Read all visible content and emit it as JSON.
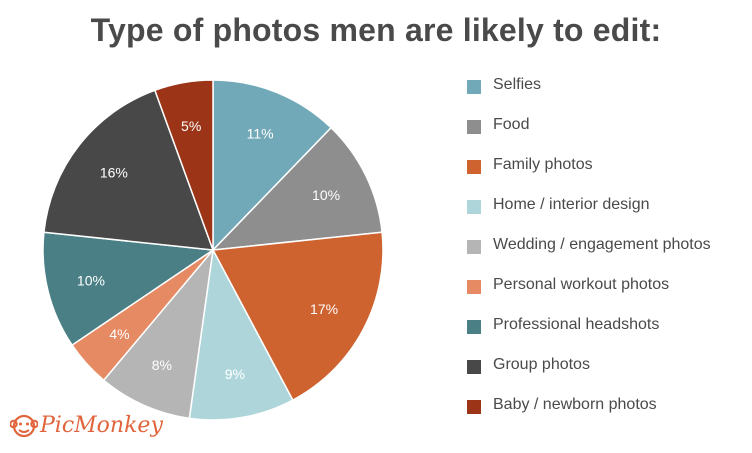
{
  "chart_data": {
    "type": "pie",
    "title": "Type of photos men are likely to edit:",
    "slices": [
      {
        "label": "Selfies",
        "value": 11,
        "value_label": "11%",
        "color": "#72a9b8"
      },
      {
        "label": "Food",
        "value": 10,
        "value_label": "10%",
        "color": "#8e8e8e"
      },
      {
        "label": "Family photos",
        "value": 17,
        "value_label": "17%",
        "color": "#cf6330"
      },
      {
        "label": "Home / interior design",
        "value": 9,
        "value_label": "9%",
        "color": "#aed6da"
      },
      {
        "label": "Wedding / engagement photos",
        "value": 8,
        "value_label": "8%",
        "color": "#b5b5b5"
      },
      {
        "label": "Personal workout photos",
        "value": 4,
        "value_label": "4%",
        "color": "#e58a63"
      },
      {
        "label": "Professional headshots",
        "value": 10,
        "value_label": "10%",
        "color": "#4a8085"
      },
      {
        "label": "Group photos",
        "value": 16,
        "value_label": "16%",
        "color": "#484848"
      },
      {
        "label": "Baby / newborn photos",
        "value": 5,
        "value_label": "5%",
        "color": "#9c3517"
      }
    ],
    "legend_position": "right"
  },
  "logo": {
    "text": "PicMonkey",
    "icon": "monkey-face-icon",
    "color": "#e0643c"
  }
}
